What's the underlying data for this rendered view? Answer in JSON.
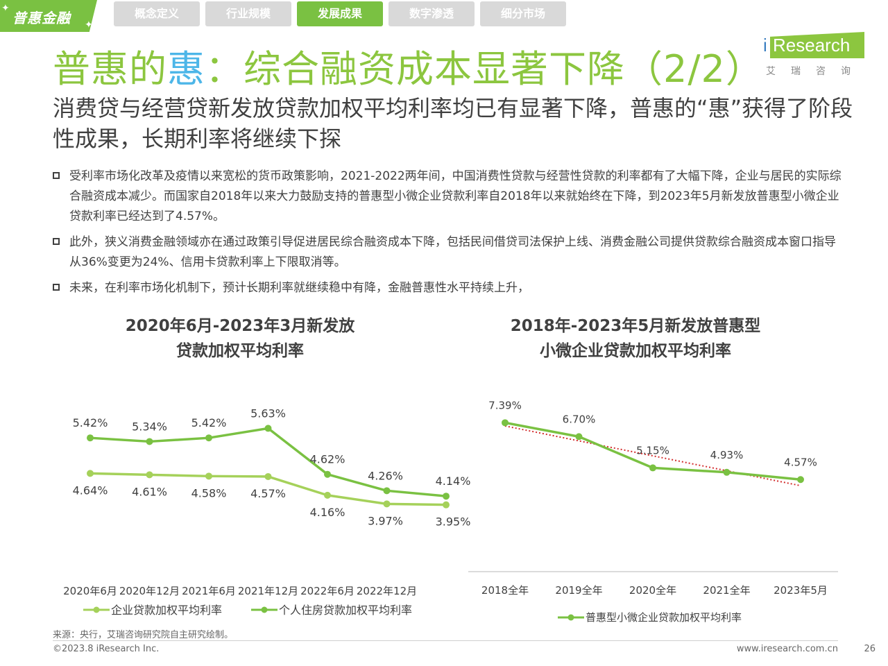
{
  "badge": {
    "label": "普惠金融"
  },
  "tabs": [
    {
      "label": "概念定义",
      "active": false
    },
    {
      "label": "行业规模",
      "active": false
    },
    {
      "label": "发展成果",
      "active": true
    },
    {
      "label": "数字渗透",
      "active": false
    },
    {
      "label": "细分市场",
      "active": false
    }
  ],
  "title": {
    "part1": "普惠的",
    "highlight": "惠",
    "part2": "：综合融资成本显著下降（2/2）"
  },
  "logo": {
    "text": "Research",
    "cn": "艾瑞咨询"
  },
  "subtitle": "消费贷与经营贷新发放贷款加权平均利率均已有显著下降，普惠的“惠”获得了阶段性成果，长期利率将继续下探",
  "bullets": [
    "受利率市场化改革及疫情以来宽松的货币政策影响，2021-2022两年间，中国消费性贷款与经营性贷款的利率都有了大幅下降，企业与居民的实际综合融资成本减少。而国家自2018年以来大力鼓励支持的普惠型小微企业贷款利率自2018年以来就始终在下降，到2023年5月新发放普惠型小微企业贷款利率已经达到了4.57%。",
    "此外，狭义消费金融领域亦在通过政策引导促进居民综合融资成本下降，包括民间借贷司法保护上线、消费金融公司提供贷款综合融资成本窗口指导从36%变更为24%、信用卡贷款利率上下限取消等。",
    "未来，在利率市场化机制下，预计长期利率就继续稳中有降，金融普惠性水平持续上升，"
  ],
  "chart_data": [
    {
      "type": "line",
      "title": "2020年6月-2023年3月新发放贷款加权平均利率",
      "title_lines": [
        "2020年6月-2023年3月新发放",
        "贷款加权平均利率"
      ],
      "categories": [
        "2020年6月",
        "2020年12月",
        "2021年6月",
        "2021年12月",
        "2022年6月",
        "2022年12月",
        ""
      ],
      "series": [
        {
          "name": "企业贷款加权平均利率",
          "values": [
            4.64,
            4.61,
            4.58,
            4.57,
            4.16,
            3.97,
            3.95
          ],
          "labels": [
            "4.64%",
            "4.61%",
            "4.58%",
            "4.57%",
            "4.16%",
            "3.97%",
            "3.95%"
          ],
          "color": "#a5d15a"
        },
        {
          "name": "个人住房贷款加权平均利率",
          "values": [
            5.42,
            5.34,
            5.42,
            5.63,
            4.62,
            4.26,
            4.14
          ],
          "labels": [
            "5.42%",
            "5.34%",
            "5.42%",
            "5.63%",
            "4.62%",
            "4.26%",
            "4.14%"
          ],
          "color": "#7ac142"
        }
      ],
      "ylim": [
        3.0,
        6.2
      ],
      "grid": false,
      "legend_position": "bottom"
    },
    {
      "type": "line",
      "title": "2018年-2023年5月新发放普惠型小微企业贷款加权平均利率",
      "title_lines": [
        "2018年-2023年5月新发放普惠型",
        "小微企业贷款加权平均利率"
      ],
      "categories": [
        "2018全年",
        "2019全年",
        "2020全年",
        "2021全年",
        "2023年5月"
      ],
      "series": [
        {
          "name": "普惠型小微企业贷款加权平均利率",
          "values": [
            7.39,
            6.7,
            5.15,
            4.93,
            4.57
          ],
          "labels": [
            "7.39%",
            "6.70%",
            "5.15%",
            "4.93%",
            "4.57%"
          ],
          "color": "#7ac142"
        }
      ],
      "trendline": {
        "type": "linear",
        "color": "#d22b2b",
        "style": "dotted"
      },
      "ylim": [
        0,
        8.4
      ],
      "grid": false,
      "legend_position": "bottom"
    }
  ],
  "source": "来源：央行，艾瑞咨询研究院自主研究绘制。",
  "footer": {
    "copyright": "©2023.8 iResearch Inc.",
    "website": "www.iresearch.com.cn",
    "page": "26"
  }
}
